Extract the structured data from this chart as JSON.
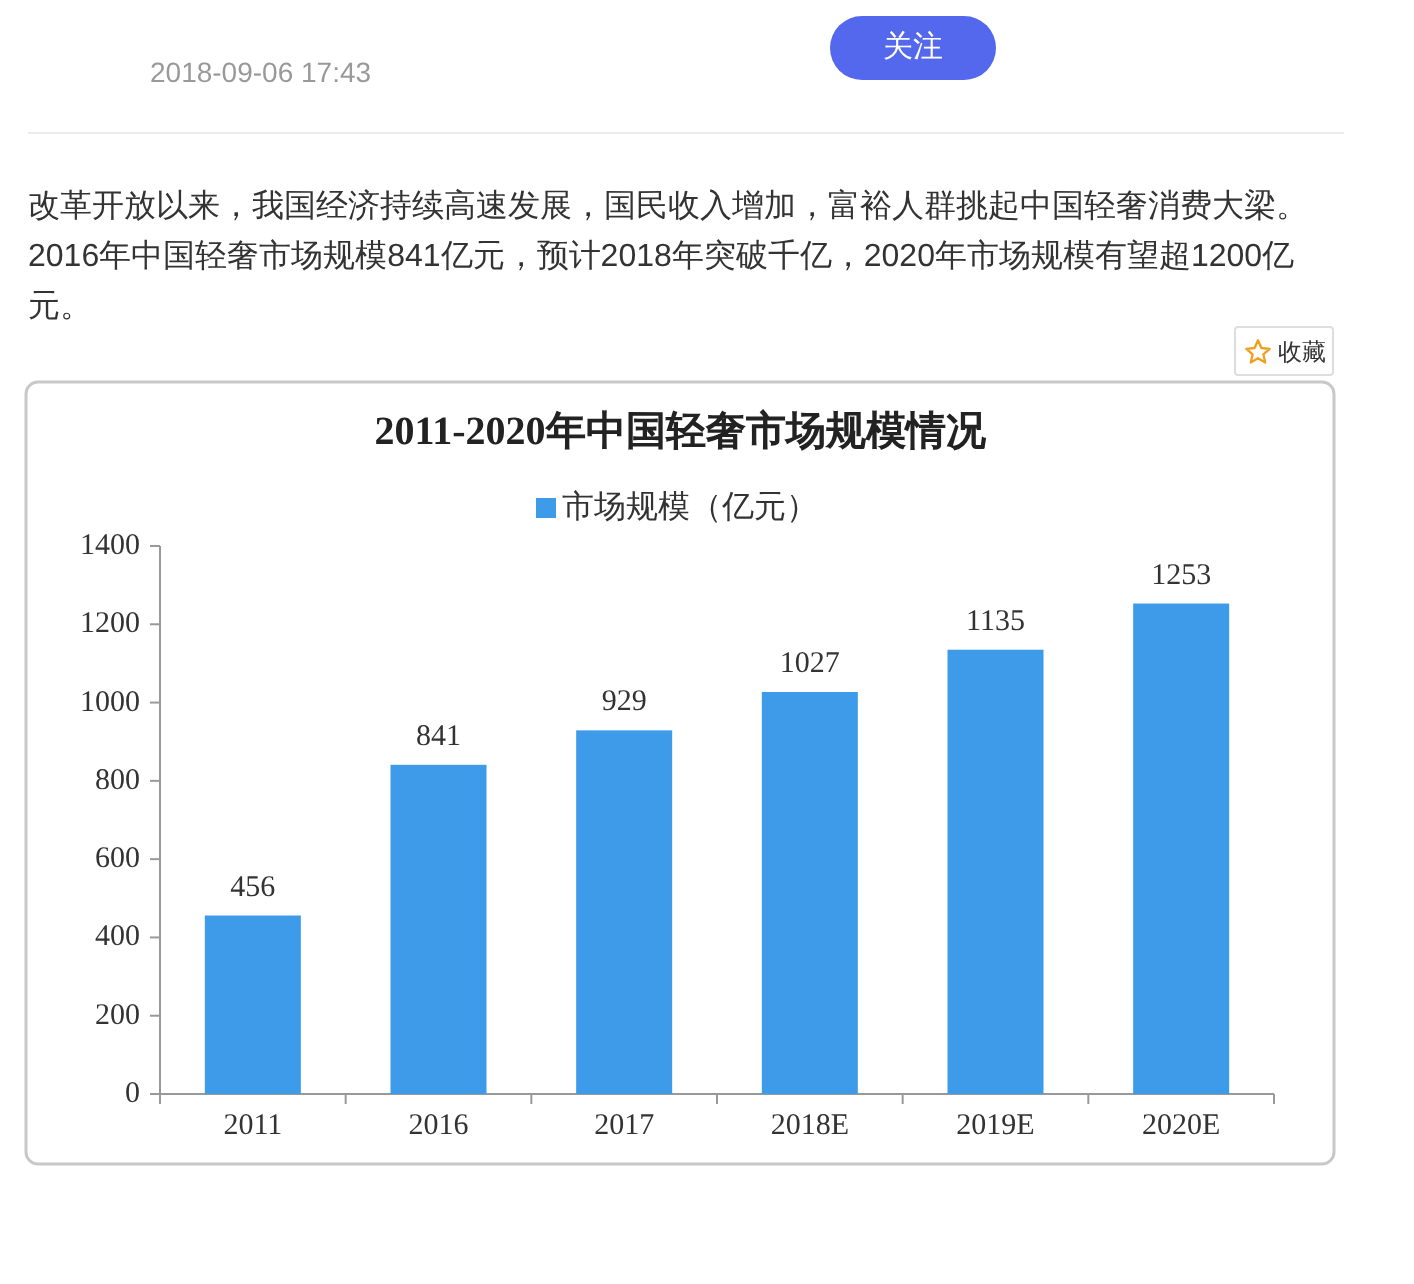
{
  "chart_data": {
    "type": "bar",
    "title": "2011-2020年中国轻奢市场规模情况",
    "categories": [
      "2011",
      "2016",
      "2017",
      "2018E",
      "2019E",
      "2020E"
    ],
    "series": [
      {
        "name": "市场规模（亿元）",
        "color": "#3d9be9",
        "values": [
          456,
          841,
          929,
          1027,
          1135,
          1253
        ]
      }
    ],
    "ylim": [
      0,
      1400
    ],
    "yticks": [
      0,
      200,
      400,
      600,
      800,
      1000,
      1200,
      1400
    ],
    "data_labels": true,
    "legend": "top",
    "annotations": [
      "2018-09-06 17:43",
      "关注",
      "改革开放以来，我国经济持续高速发展，国民收入增加，富裕人群挑起中国轻奢消费大梁。2016年中国轻奢市场规模841亿元，预计2018年突破千亿，2020年市场规模有望超1200亿元。",
      "收藏"
    ]
  }
}
